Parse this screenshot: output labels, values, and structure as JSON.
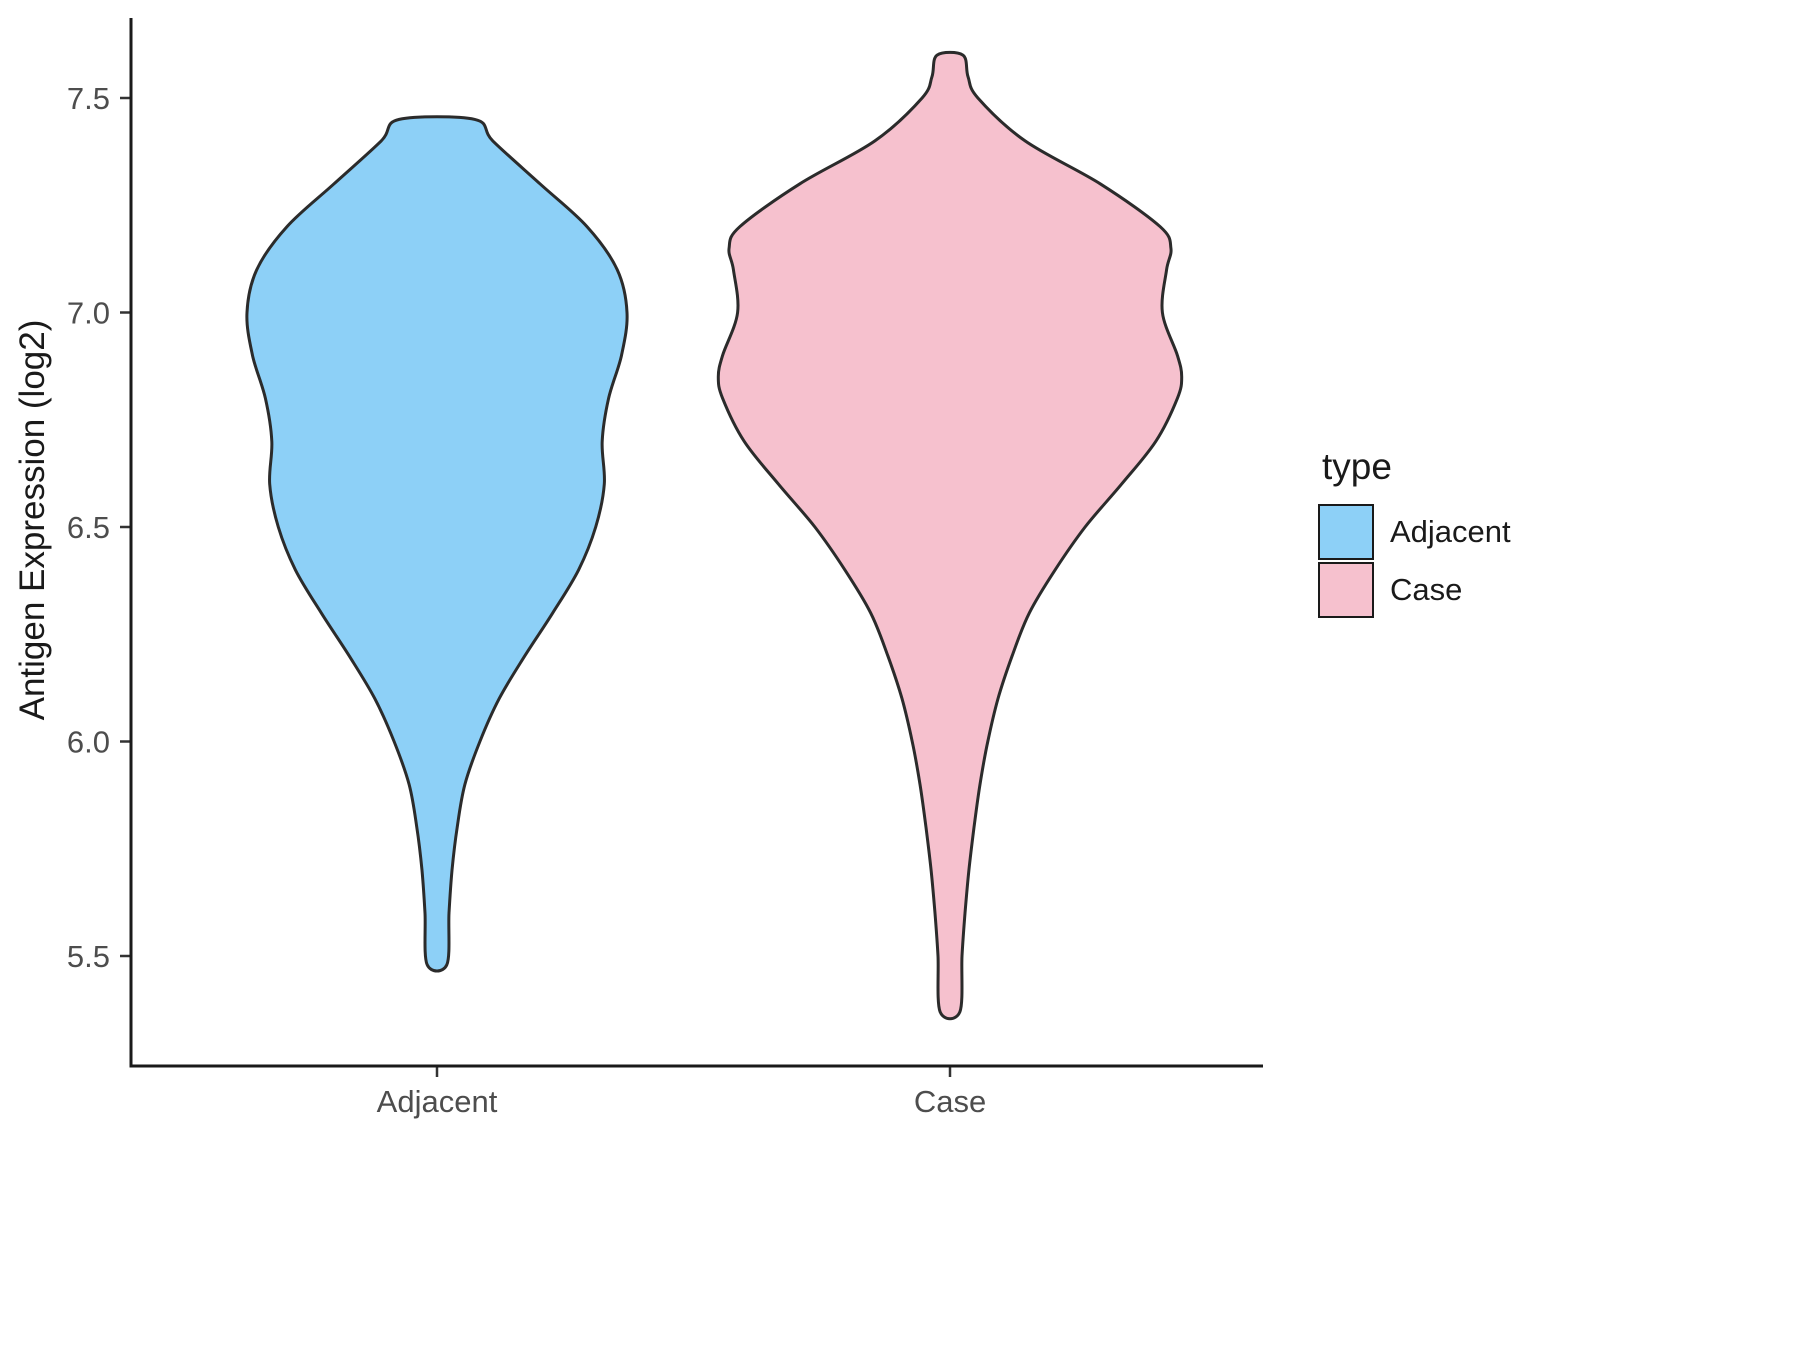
{
  "chart_data": {
    "type": "violin",
    "title": "",
    "xlabel": "",
    "ylabel": "Antigen Expression (log2)",
    "categories": [
      "Adjacent",
      "Case"
    ],
    "yticks": [
      "5.5",
      "6.0",
      "6.5",
      "7.0",
      "7.5"
    ],
    "ytick_values": [
      5.5,
      6.0,
      6.5,
      7.0,
      7.5
    ],
    "ylim": [
      5.3,
      7.72
    ],
    "grid": "off",
    "legend": {
      "title": "type",
      "position": "right",
      "entries": [
        {
          "label": "Adjacent",
          "color": "#8DD0F7"
        },
        {
          "label": "Case",
          "color": "#F6C1CE"
        }
      ]
    },
    "series": [
      {
        "name": "Adjacent",
        "fill": "#8DD0F7",
        "outline": "#2B2B2B",
        "min": 5.48,
        "max": 7.45,
        "profile": [
          [
            5.48,
            0.023
          ],
          [
            5.6,
            0.028
          ],
          [
            5.7,
            0.035
          ],
          [
            5.8,
            0.047
          ],
          [
            5.9,
            0.065
          ],
          [
            6.0,
            0.1
          ],
          [
            6.1,
            0.145
          ],
          [
            6.2,
            0.205
          ],
          [
            6.3,
            0.27
          ],
          [
            6.4,
            0.33
          ],
          [
            6.5,
            0.37
          ],
          [
            6.6,
            0.39
          ],
          [
            6.7,
            0.385
          ],
          [
            6.8,
            0.4
          ],
          [
            6.9,
            0.43
          ],
          [
            7.0,
            0.443
          ],
          [
            7.1,
            0.42
          ],
          [
            7.2,
            0.35
          ],
          [
            7.3,
            0.24
          ],
          [
            7.4,
            0.13
          ],
          [
            7.45,
            0.088
          ]
        ]
      },
      {
        "name": "Case",
        "fill": "#F6C1CE",
        "outline": "#2B2B2B",
        "min": 5.37,
        "max": 7.6,
        "profile": [
          [
            5.37,
            0.023
          ],
          [
            5.5,
            0.028
          ],
          [
            5.6,
            0.035
          ],
          [
            5.7,
            0.044
          ],
          [
            5.8,
            0.056
          ],
          [
            5.9,
            0.07
          ],
          [
            6.0,
            0.088
          ],
          [
            6.1,
            0.112
          ],
          [
            6.2,
            0.145
          ],
          [
            6.3,
            0.185
          ],
          [
            6.4,
            0.245
          ],
          [
            6.5,
            0.315
          ],
          [
            6.6,
            0.4
          ],
          [
            6.7,
            0.48
          ],
          [
            6.8,
            0.53
          ],
          [
            6.85,
            0.54
          ],
          [
            6.9,
            0.53
          ],
          [
            7.0,
            0.495
          ],
          [
            7.1,
            0.505
          ],
          [
            7.15,
            0.515
          ],
          [
            7.2,
            0.49
          ],
          [
            7.3,
            0.35
          ],
          [
            7.4,
            0.175
          ],
          [
            7.5,
            0.065
          ],
          [
            7.55,
            0.042
          ],
          [
            7.6,
            0.03
          ]
        ]
      }
    ]
  }
}
